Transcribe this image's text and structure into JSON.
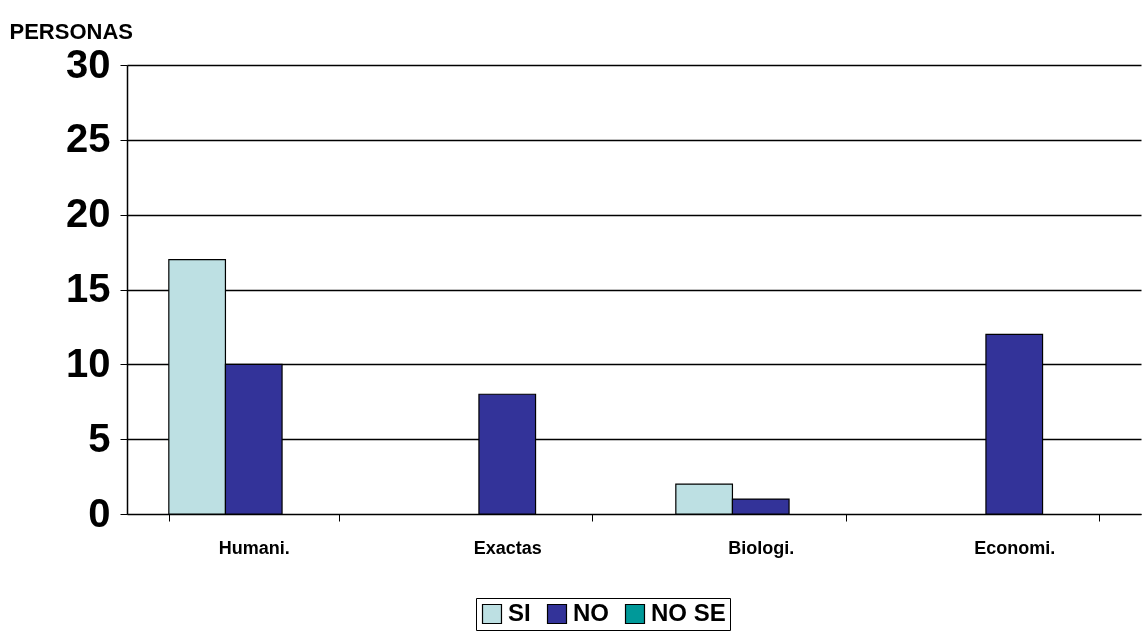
{
  "chart_data": {
    "type": "bar",
    "ylabel": "PERSONAS",
    "categories": [
      "Humani.",
      "Exactas",
      "Biologi.",
      "Economi."
    ],
    "series": [
      {
        "name": "SI",
        "color": "#bde0e3",
        "values": [
          17,
          null,
          2,
          null
        ]
      },
      {
        "name": "NO",
        "color": "#333399",
        "values": [
          10,
          8,
          1,
          12
        ]
      },
      {
        "name": "NO SE",
        "color": "#009999",
        "values": [
          null,
          null,
          null,
          null
        ]
      }
    ],
    "ylim": [
      0,
      30
    ],
    "yticks": [
      0,
      5,
      10,
      15,
      20,
      25,
      30
    ],
    "grid": "y",
    "legend": "bottom"
  }
}
